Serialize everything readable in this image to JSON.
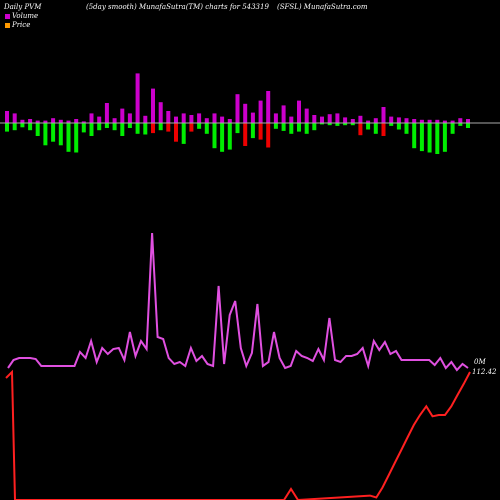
{
  "header": {
    "left": "Daily PVM",
    "mid1": "(5day smooth) MunafaSutra(TM) charts for 543319",
    "mid2": "(SFSL) MunafaSutra.com"
  },
  "legend": [
    {
      "label": "Volume",
      "color": "#cc00cc"
    },
    {
      "label": "Price",
      "color": "#ff9900"
    }
  ],
  "labels": {
    "volume_last": "0M",
    "price_last": "112.42"
  },
  "colors": {
    "background": "#000000",
    "up_bar": "#cc00cc",
    "down_bar_green": "#00ee00",
    "down_bar_red": "#ee0000",
    "volume_line": "#e050e0",
    "price_line": "#ff2020",
    "baseline": "#aaaaaa"
  },
  "chart_data": {
    "type": "bar",
    "n": 61,
    "bars": [
      {
        "up": 1.5,
        "down": 1.2,
        "down_color": "green"
      },
      {
        "up": 1.2,
        "down": 1.0,
        "down_color": "green"
      },
      {
        "up": 0.4,
        "down": 0.6,
        "down_color": "green"
      },
      {
        "up": 0.5,
        "down": 1.0,
        "down_color": "green"
      },
      {
        "up": 0.3,
        "down": 1.8,
        "down_color": "green"
      },
      {
        "up": 0.3,
        "down": 3.1,
        "down_color": "green"
      },
      {
        "up": 0.6,
        "down": 2.6,
        "down_color": "green"
      },
      {
        "up": 0.4,
        "down": 3.1,
        "down_color": "green"
      },
      {
        "up": 0.3,
        "down": 4.0,
        "down_color": "green"
      },
      {
        "up": 0.5,
        "down": 4.1,
        "down_color": "green"
      },
      {
        "up": 0.2,
        "down": 1.3,
        "down_color": "green"
      },
      {
        "up": 1.2,
        "down": 1.8,
        "down_color": "green"
      },
      {
        "up": 0.8,
        "down": 1.0,
        "down_color": "green"
      },
      {
        "up": 2.5,
        "down": 0.7,
        "down_color": "green"
      },
      {
        "up": 0.6,
        "down": 1.0,
        "down_color": "green"
      },
      {
        "up": 1.8,
        "down": 1.8,
        "down_color": "green"
      },
      {
        "up": 1.2,
        "down": 0.7,
        "down_color": "green"
      },
      {
        "up": 6.2,
        "down": 1.5,
        "down_color": "green"
      },
      {
        "up": 0.9,
        "down": 1.6,
        "down_color": "green"
      },
      {
        "up": 4.3,
        "down": 1.4,
        "down_color": "red"
      },
      {
        "up": 2.6,
        "down": 1.0,
        "down_color": "green"
      },
      {
        "up": 1.5,
        "down": 1.2,
        "down_color": "red"
      },
      {
        "up": 0.8,
        "down": 2.6,
        "down_color": "red"
      },
      {
        "up": 1.2,
        "down": 2.9,
        "down_color": "green"
      },
      {
        "up": 1.0,
        "down": 1.2,
        "down_color": "red"
      },
      {
        "up": 1.2,
        "down": 0.8,
        "down_color": "green"
      },
      {
        "up": 0.6,
        "down": 1.5,
        "down_color": "green"
      },
      {
        "up": 1.2,
        "down": 3.5,
        "down_color": "green"
      },
      {
        "up": 0.8,
        "down": 4.0,
        "down_color": "green"
      },
      {
        "up": 0.5,
        "down": 3.7,
        "down_color": "green"
      },
      {
        "up": 3.6,
        "down": 1.4,
        "down_color": "green"
      },
      {
        "up": 2.4,
        "down": 3.2,
        "down_color": "red"
      },
      {
        "up": 1.3,
        "down": 2.1,
        "down_color": "green"
      },
      {
        "up": 2.8,
        "down": 2.3,
        "down_color": "red"
      },
      {
        "up": 4.0,
        "down": 3.4,
        "down_color": "red"
      },
      {
        "up": 1.2,
        "down": 0.8,
        "down_color": "green"
      },
      {
        "up": 2.2,
        "down": 1.1,
        "down_color": "green"
      },
      {
        "up": 0.8,
        "down": 1.5,
        "down_color": "green"
      },
      {
        "up": 2.8,
        "down": 1.2,
        "down_color": "green"
      },
      {
        "up": 1.8,
        "down": 1.5,
        "down_color": "green"
      },
      {
        "up": 1.0,
        "down": 1.0,
        "down_color": "green"
      },
      {
        "up": 0.8,
        "down": 0.2,
        "down_color": "green"
      },
      {
        "up": 1.1,
        "down": 0.3,
        "down_color": "green"
      },
      {
        "up": 1.2,
        "down": 0.4,
        "down_color": "green"
      },
      {
        "up": 0.7,
        "down": 0.3,
        "down_color": "green"
      },
      {
        "up": 0.5,
        "down": 0.3,
        "down_color": "green"
      },
      {
        "up": 0.9,
        "down": 1.7,
        "down_color": "red"
      },
      {
        "up": 0.3,
        "down": 0.9,
        "down_color": "green"
      },
      {
        "up": 0.6,
        "down": 1.5,
        "down_color": "green"
      },
      {
        "up": 2.0,
        "down": 1.8,
        "down_color": "red"
      },
      {
        "up": 0.8,
        "down": 0.4,
        "down_color": "green"
      },
      {
        "up": 0.7,
        "down": 0.9,
        "down_color": "green"
      },
      {
        "up": 0.6,
        "down": 1.5,
        "down_color": "green"
      },
      {
        "up": 0.5,
        "down": 3.5,
        "down_color": "green"
      },
      {
        "up": 0.4,
        "down": 3.9,
        "down_color": "green"
      },
      {
        "up": 0.4,
        "down": 4.1,
        "down_color": "green"
      },
      {
        "up": 0.4,
        "down": 4.3,
        "down_color": "green"
      },
      {
        "up": 0.3,
        "down": 4.0,
        "down_color": "green"
      },
      {
        "up": 0.3,
        "down": 1.5,
        "down_color": "green"
      },
      {
        "up": 0.6,
        "down": 0.4,
        "down_color": "green"
      },
      {
        "up": 0.5,
        "down": 0.7,
        "down_color": "green"
      }
    ],
    "volume_smooth": [
      368,
      360,
      358,
      358,
      358,
      359,
      366,
      366,
      366,
      366,
      366,
      366,
      366,
      352,
      358,
      341,
      362,
      348,
      354,
      349,
      348,
      360,
      332,
      356,
      341,
      349,
      233,
      337,
      339,
      358,
      364,
      362,
      366,
      348,
      361,
      356,
      364,
      366,
      286,
      364,
      315,
      301,
      348,
      366,
      353,
      304,
      366,
      362,
      332,
      358,
      368,
      366,
      351,
      356,
      358,
      361,
      349,
      360,
      318,
      360,
      362,
      356,
      356,
      354,
      348,
      366,
      341,
      350,
      342,
      354,
      351,
      360,
      360,
      360,
      360,
      360,
      360,
      365,
      358,
      368,
      362,
      370,
      364,
      368
    ],
    "price_close": [
      100.0,
      10.0,
      10.0,
      10.0,
      10.0,
      10.0,
      10.0,
      10.0,
      10.0,
      10.0,
      10.0,
      10.0,
      10.0,
      10.0,
      10.0,
      10.0,
      10.0,
      10.0,
      10.0,
      10.0,
      10.0,
      10.0,
      10.0,
      10.0,
      10.0,
      10.0,
      10.0,
      10.0,
      10.0,
      10.0,
      10.0,
      10.0,
      10.0,
      10.0,
      10.0,
      10.0,
      10.0,
      10.0,
      10.0,
      10.0,
      10.0,
      10.0,
      10.0,
      10.0,
      10.0,
      10.0,
      10.0,
      10.0,
      10.0,
      10.0,
      10.0,
      10.0,
      10.0,
      10.0,
      10.0,
      10.0,
      10.0,
      10.0,
      10.0,
      10.0,
      10.0,
      10.0,
      10.0,
      10.0,
      10.0,
      10.0,
      10.0,
      10.0,
      10.0,
      10.0,
      10.0,
      10.0,
      10.0,
      10.0,
      10.0,
      10.0,
      10.0,
      10.0,
      10.0,
      10.0,
      10.0,
      10.0,
      10.0,
      112.42
    ],
    "price_tail": [
      13.5,
      12.0,
      20.0,
      30.0,
      40.0,
      50.0,
      60.0,
      70.0,
      78.0,
      85.0,
      77.0,
      78.0,
      78.0,
      85.0,
      94.0,
      103.0,
      112.42
    ]
  }
}
